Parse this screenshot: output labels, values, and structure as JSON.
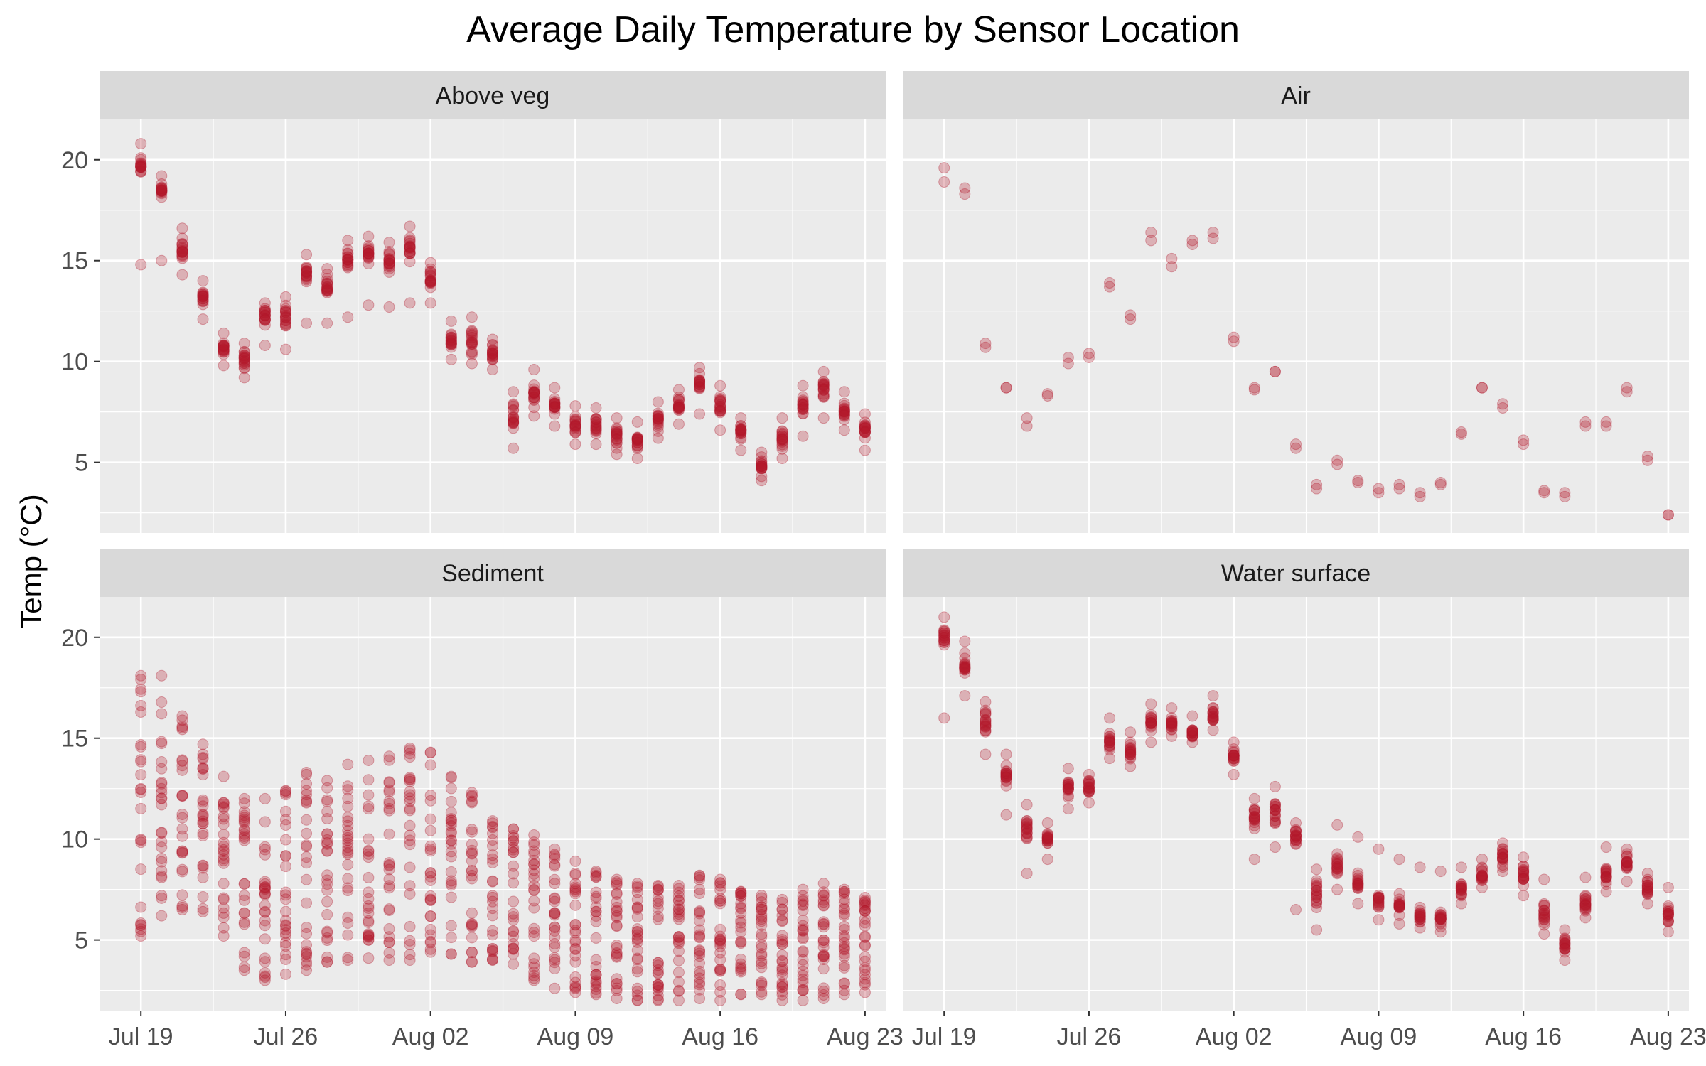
{
  "chart_data": {
    "type": "scatter",
    "title": "Average Daily Temperature by Sensor Location",
    "xlabel": "",
    "ylabel": "Temp (°C)",
    "x_range": [
      "2025-07-17",
      "2025-08-24"
    ],
    "ylim": [
      1.5,
      22
    ],
    "x_ticks": [
      "Jul 19",
      "Jul 26",
      "Aug 02",
      "Aug 09",
      "Aug 16",
      "Aug 23"
    ],
    "x_tick_dates": [
      "2025-07-19",
      "2025-07-26",
      "2025-08-02",
      "2025-08-09",
      "2025-08-16",
      "2025-08-23"
    ],
    "y_ticks": [
      5,
      10,
      15,
      20
    ],
    "point_color": "#b2182b",
    "panel_background": "#ebebeb",
    "strip_background": "#d9d9d9",
    "grid": true,
    "dates": [
      "2025-07-19",
      "2025-07-20",
      "2025-07-21",
      "2025-07-22",
      "2025-07-23",
      "2025-07-24",
      "2025-07-25",
      "2025-07-26",
      "2025-07-27",
      "2025-07-28",
      "2025-07-29",
      "2025-07-30",
      "2025-07-31",
      "2025-08-01",
      "2025-08-02",
      "2025-08-03",
      "2025-08-04",
      "2025-08-05",
      "2025-08-06",
      "2025-08-07",
      "2025-08-08",
      "2025-08-09",
      "2025-08-10",
      "2025-08-11",
      "2025-08-12",
      "2025-08-13",
      "2025-08-14",
      "2025-08-15",
      "2025-08-16",
      "2025-08-17",
      "2025-08-18",
      "2025-08-19",
      "2025-08-20",
      "2025-08-21",
      "2025-08-22",
      "2025-08-23"
    ],
    "panels": [
      {
        "name": "Above veg",
        "center": [
          19.6,
          18.5,
          15.5,
          13.2,
          10.6,
          10.1,
          12.2,
          12.3,
          14.4,
          13.7,
          15.1,
          15.3,
          14.8,
          15.6,
          14.1,
          11.1,
          11.1,
          10.4,
          7.3,
          8.3,
          7.8,
          6.9,
          6.8,
          6.3,
          6.1,
          7.1,
          7.9,
          8.9,
          7.8,
          6.5,
          4.8,
          6.2,
          7.9,
          8.6,
          7.6,
          6.6
        ],
        "min": [
          14.8,
          15.0,
          14.3,
          12.1,
          9.8,
          9.2,
          10.8,
          10.6,
          11.9,
          11.9,
          12.2,
          12.8,
          12.7,
          12.9,
          12.9,
          10.1,
          9.9,
          9.6,
          5.7,
          7.3,
          6.8,
          5.9,
          5.9,
          5.4,
          5.2,
          6.2,
          6.9,
          7.4,
          6.6,
          5.6,
          4.1,
          5.2,
          6.3,
          7.2,
          6.6,
          5.6
        ],
        "max": [
          20.8,
          19.2,
          16.6,
          14.0,
          11.4,
          10.9,
          12.9,
          13.2,
          15.3,
          14.6,
          16.0,
          16.2,
          15.9,
          16.7,
          14.9,
          12.0,
          12.2,
          11.1,
          8.5,
          9.6,
          8.7,
          7.8,
          7.7,
          7.2,
          7.0,
          8.0,
          8.6,
          9.7,
          8.8,
          7.2,
          5.5,
          7.2,
          8.8,
          9.5,
          8.5,
          7.4
        ],
        "count": 18
      },
      {
        "name": "Air",
        "center": [
          19.2,
          18.5,
          10.8,
          8.7,
          7.0,
          8.4,
          10.1,
          10.3,
          13.8,
          12.2,
          16.2,
          14.9,
          15.9,
          16.3,
          11.1,
          8.7,
          9.5,
          5.8,
          3.8,
          5.0,
          4.1,
          3.6,
          3.8,
          3.4,
          4.0,
          6.4,
          8.7,
          7.8,
          6.0,
          3.6,
          3.4,
          6.9,
          6.9,
          8.6,
          5.2,
          2.4
        ],
        "min": [
          18.9,
          18.3,
          10.7,
          8.7,
          6.8,
          8.3,
          9.9,
          10.2,
          13.7,
          12.1,
          16.0,
          14.7,
          15.8,
          16.1,
          11.0,
          8.6,
          9.5,
          5.7,
          3.7,
          4.9,
          4.0,
          3.5,
          3.7,
          3.3,
          3.9,
          6.4,
          8.7,
          7.7,
          5.9,
          3.5,
          3.3,
          6.8,
          6.8,
          8.5,
          5.1,
          2.4
        ],
        "max": [
          19.6,
          18.6,
          10.9,
          8.7,
          7.2,
          8.4,
          10.2,
          10.4,
          13.9,
          12.3,
          16.4,
          15.1,
          16.0,
          16.4,
          11.2,
          8.7,
          9.5,
          5.9,
          3.9,
          5.1,
          4.1,
          3.7,
          3.9,
          3.5,
          4.0,
          6.5,
          8.7,
          7.9,
          6.1,
          3.6,
          3.5,
          7.0,
          7.0,
          8.7,
          5.3,
          2.4
        ],
        "count": 2
      },
      {
        "name": "Sediment",
        "center": [
          10.5,
          11.5,
          12.5,
          10.5,
          8.5,
          7.5,
          8.5,
          8.5,
          9.0,
          9.5,
          10.0,
          10.5,
          10.5,
          10.5,
          9.5,
          8.5,
          8.0,
          8.0,
          6.0,
          6.0,
          5.5,
          5.0,
          5.0,
          4.5,
          4.0,
          4.5,
          5.0,
          5.5,
          5.0,
          4.5,
          4.0,
          4.0,
          4.5,
          5.0,
          5.0,
          5.0
        ],
        "min": [
          5.2,
          6.2,
          6.5,
          6.4,
          5.2,
          3.5,
          3.0,
          3.3,
          3.5,
          3.9,
          4.0,
          4.1,
          4.0,
          4.0,
          4.4,
          4.3,
          3.9,
          4.0,
          3.8,
          3.0,
          2.6,
          2.4,
          2.3,
          2.1,
          2.0,
          2.0,
          2.0,
          2.1,
          2.0,
          2.3,
          2.3,
          2.0,
          2.0,
          2.1,
          2.3,
          2.4
        ],
        "max": [
          18.1,
          18.1,
          16.1,
          14.7,
          13.1,
          12.0,
          12.0,
          12.4,
          13.3,
          12.9,
          13.7,
          13.9,
          14.1,
          14.5,
          14.3,
          13.1,
          12.3,
          10.9,
          10.5,
          10.2,
          9.5,
          8.9,
          8.4,
          8.0,
          7.8,
          7.7,
          7.7,
          8.2,
          8.0,
          7.4,
          7.2,
          7.0,
          7.5,
          7.8,
          7.5,
          7.1
        ],
        "count": 26
      },
      {
        "name": "Water surface",
        "center": [
          20.0,
          18.6,
          15.7,
          13.0,
          10.5,
          10.1,
          12.5,
          12.6,
          14.8,
          14.4,
          15.8,
          15.7,
          15.3,
          16.1,
          14.1,
          11.1,
          11.3,
          10.1,
          7.3,
          8.7,
          7.8,
          6.9,
          6.7,
          6.2,
          6.1,
          7.6,
          8.3,
          9.1,
          8.2,
          6.3,
          4.7,
          6.9,
          8.2,
          8.8,
          7.6,
          6.4
        ],
        "min": [
          16.0,
          17.1,
          14.2,
          11.2,
          8.3,
          9.0,
          11.5,
          11.8,
          14.0,
          13.6,
          14.8,
          15.1,
          14.8,
          15.4,
          13.2,
          9.0,
          9.6,
          6.5,
          5.5,
          7.5,
          6.8,
          6.0,
          5.8,
          5.6,
          5.4,
          6.8,
          7.6,
          8.4,
          7.2,
          5.3,
          4.0,
          6.1,
          7.4,
          7.9,
          6.8,
          5.4
        ],
        "max": [
          21.0,
          19.8,
          16.8,
          14.2,
          11.7,
          10.8,
          13.5,
          13.2,
          16.0,
          15.3,
          16.7,
          16.5,
          16.1,
          17.1,
          14.8,
          12.0,
          12.6,
          10.8,
          8.5,
          10.7,
          10.1,
          9.5,
          9.0,
          8.6,
          8.4,
          8.6,
          9.0,
          9.8,
          9.1,
          8.0,
          5.5,
          8.1,
          9.6,
          9.5,
          8.3,
          7.6
        ],
        "count": 18
      }
    ]
  }
}
